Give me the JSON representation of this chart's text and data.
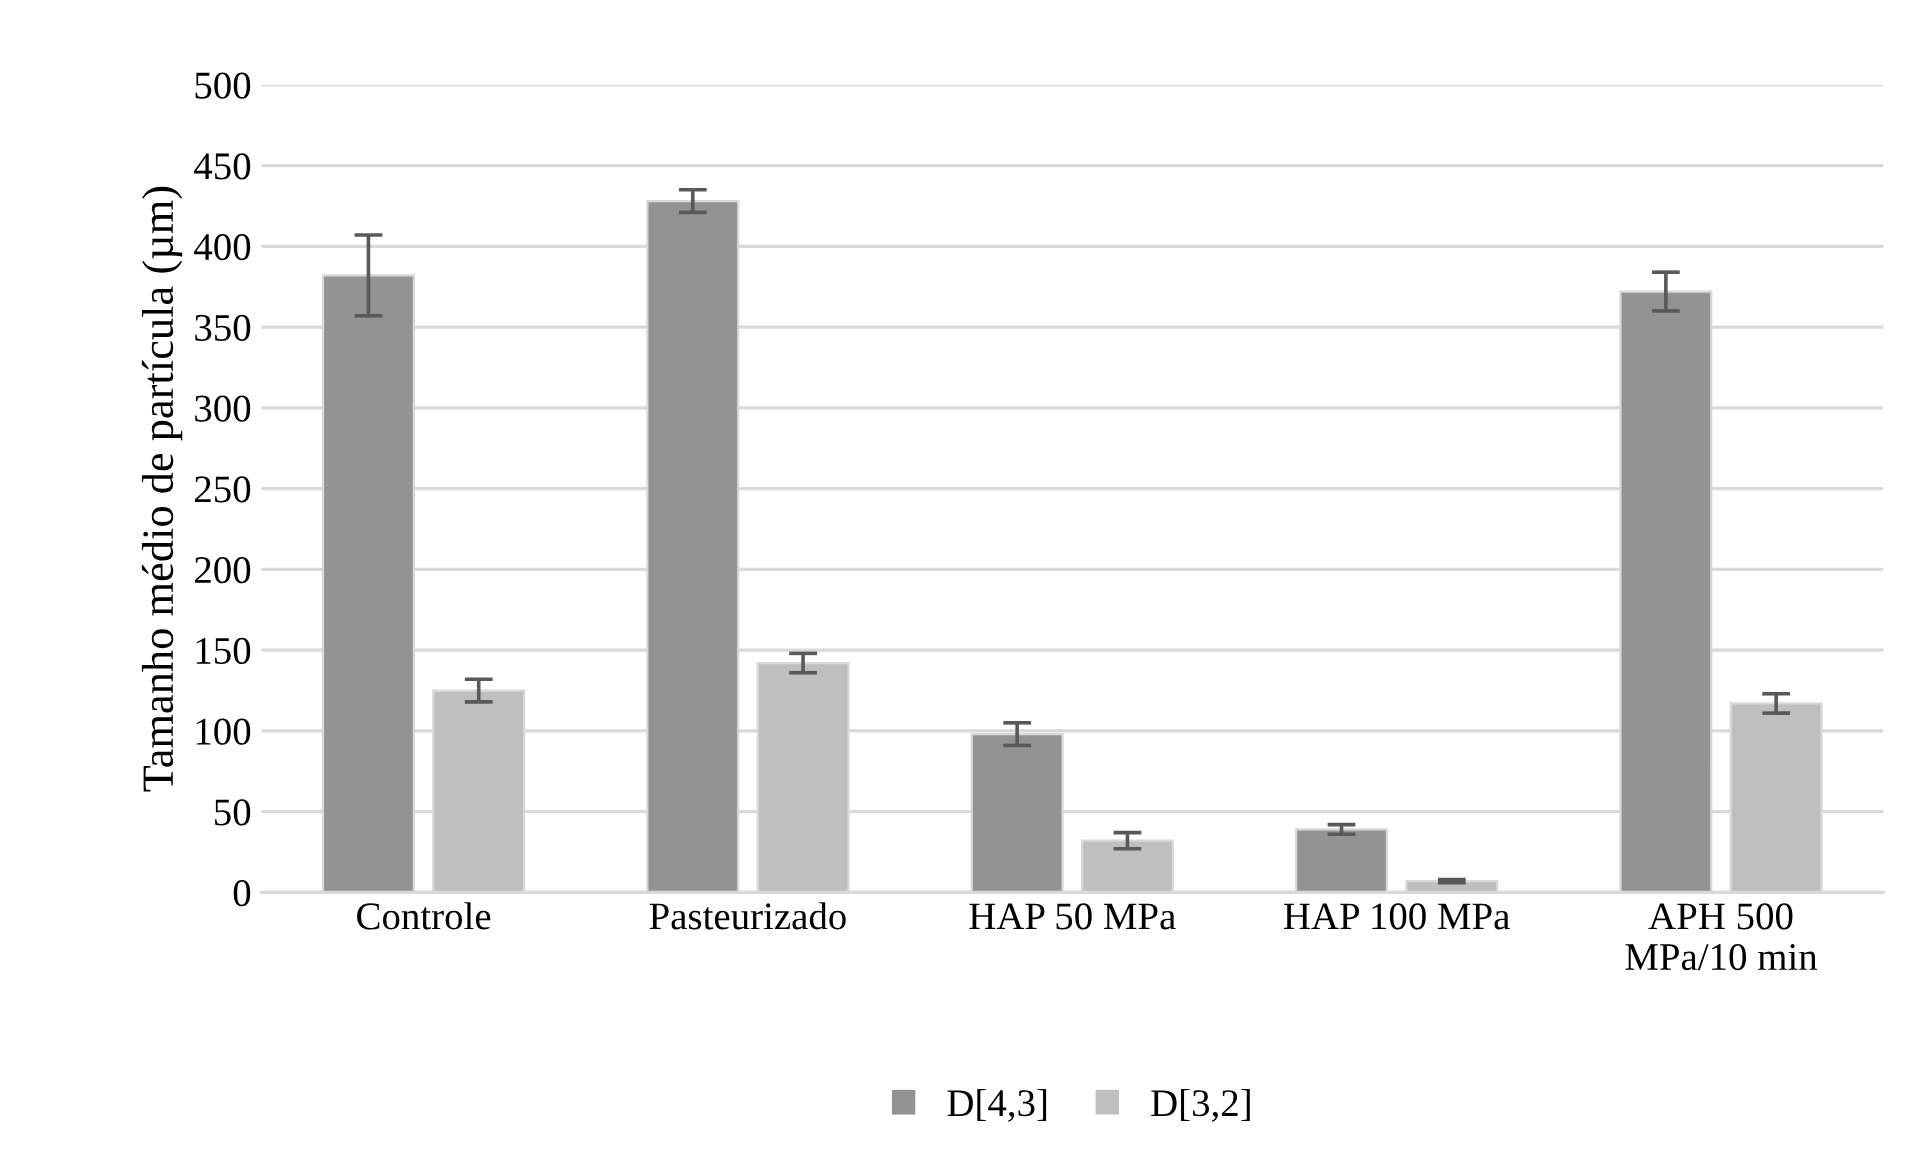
{
  "chart_data": {
    "type": "bar",
    "ylabel": "Tamanho médio de partícula (µm)",
    "categories": [
      "Controle",
      "Pasteurizado",
      "HAP 50 MPa",
      "HAP 100 MPa",
      "APH 500\nMPa/10 min"
    ],
    "series": [
      {
        "name": "D[4,3]",
        "color": "#939393",
        "values": [
          382,
          428,
          98,
          39,
          372
        ],
        "errors": [
          25,
          7,
          7,
          3,
          12
        ]
      },
      {
        "name": "D[3,2]",
        "color": "#bfbfbf",
        "values": [
          125,
          142,
          32,
          7,
          117
        ],
        "errors": [
          7,
          6,
          5,
          1,
          6
        ]
      }
    ],
    "ylim": [
      0,
      500
    ],
    "yticks": [
      0,
      50,
      100,
      150,
      200,
      250,
      300,
      350,
      400,
      450,
      500
    ],
    "grid": "y",
    "legend": "bottom"
  }
}
